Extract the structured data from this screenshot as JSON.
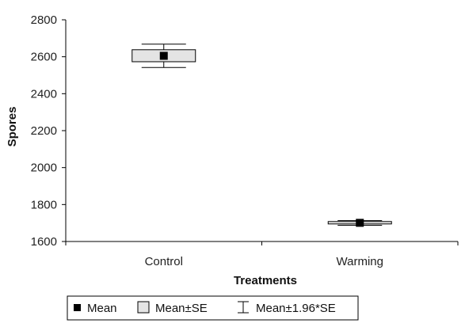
{
  "chart_data": {
    "type": "boxplot",
    "title": "",
    "xlabel": "Treatments",
    "ylabel": "Spores",
    "ylim": [
      1600,
      2800
    ],
    "yticks": [
      1600,
      1800,
      2000,
      2200,
      2400,
      2600,
      2800
    ],
    "categories": [
      "Control",
      "Warming"
    ],
    "series": [
      {
        "category": "Control",
        "mean": 2605,
        "se_low": 2573,
        "se_high": 2638,
        "ci_low": 2542,
        "ci_high": 2668
      },
      {
        "category": "Warming",
        "mean": 1701,
        "se_low": 1695,
        "se_high": 1708,
        "ci_low": 1688,
        "ci_high": 1713
      }
    ],
    "legend": {
      "position": "bottom-left",
      "items": [
        "Mean",
        "Mean±SE",
        "Mean±1.96*SE"
      ]
    },
    "grid": false
  }
}
